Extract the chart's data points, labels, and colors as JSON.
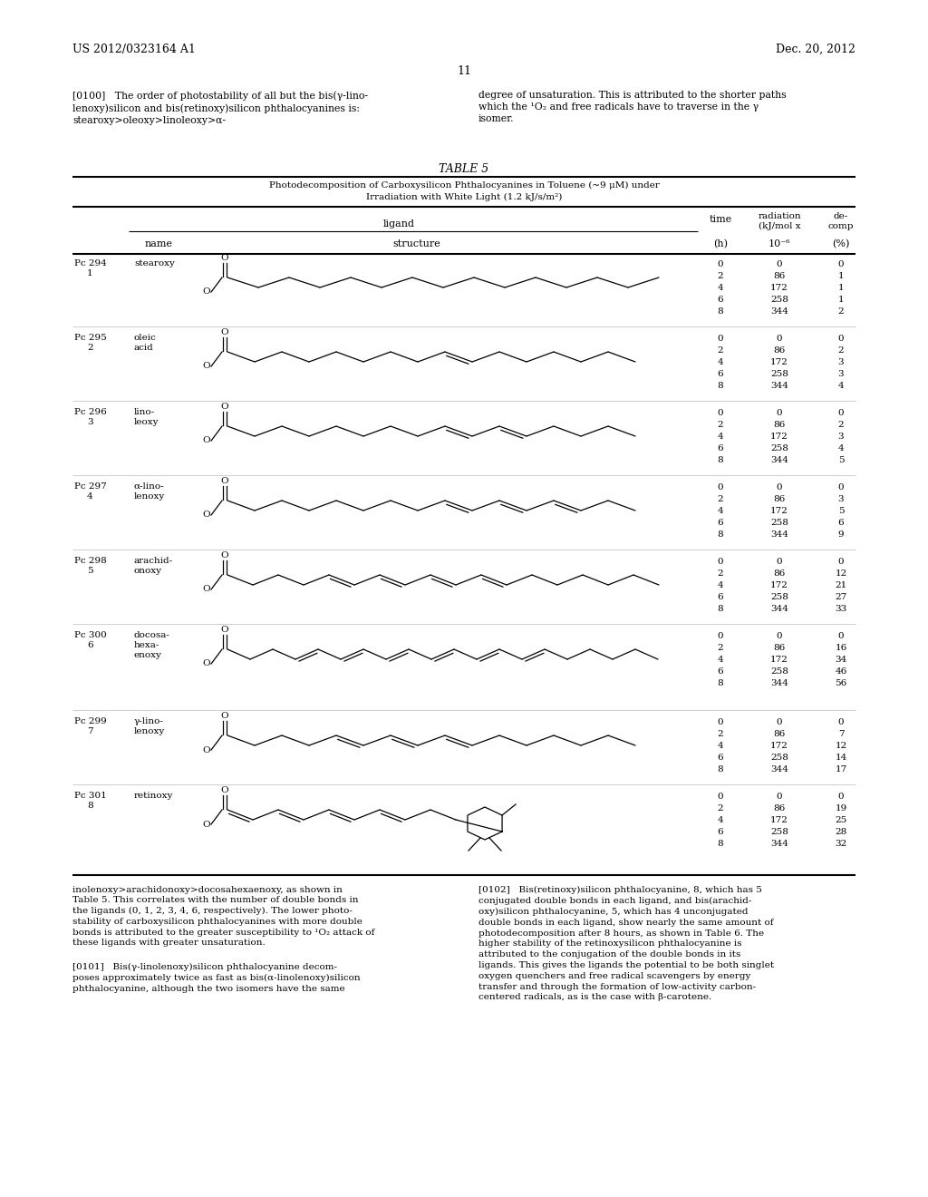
{
  "page_header_left": "US 2012/0323164 A1",
  "page_header_right": "Dec. 20, 2012",
  "page_number": "11",
  "para0100_left": "[0100]   The order of photostability of all but the bis(γ-lino-\nlenoxy)silicon and bis(retinoxy)silicon phthalocyanines is:\nstearoxy>oleoxy>linoleoxy>α-",
  "para0100_right": "degree of unsaturation. This is attributed to the shorter paths\nwhich the ¹O₂ and free radicals have to traverse in the γ\nisomer.",
  "table_title": "TABLE 5",
  "table_subtitle1": "Photodecomposition of Carboxysilicon Phthalocyanines in Toluene (~9 μM) under",
  "table_subtitle2": "Irradiation with White Light (1.2 kJ/s/m²)",
  "rows": [
    {
      "pc": "Pc 294",
      "num": "1",
      "name": "stearoxy",
      "struct_type": "stearoxy",
      "time": [
        "0",
        "2",
        "4",
        "6",
        "8"
      ],
      "radiation": [
        "0",
        "86",
        "172",
        "258",
        "344"
      ],
      "decomp": [
        "0",
        "1",
        "1",
        "1",
        "2"
      ]
    },
    {
      "pc": "Pc 295",
      "num": "2",
      "name": "oleic\nacid",
      "struct_type": "oleic",
      "time": [
        "0",
        "2",
        "4",
        "6",
        "8"
      ],
      "radiation": [
        "0",
        "86",
        "172",
        "258",
        "344"
      ],
      "decomp": [
        "0",
        "2",
        "3",
        "3",
        "4"
      ]
    },
    {
      "pc": "Pc 296",
      "num": "3",
      "name": "lino-\nleoxy",
      "struct_type": "linoleoxy",
      "time": [
        "0",
        "2",
        "4",
        "6",
        "8"
      ],
      "radiation": [
        "0",
        "86",
        "172",
        "258",
        "344"
      ],
      "decomp": [
        "0",
        "2",
        "3",
        "4",
        "5"
      ]
    },
    {
      "pc": "Pc 297",
      "num": "4",
      "name": "α-lino-\nlenoxy",
      "struct_type": "alpha_linolenoxy",
      "time": [
        "0",
        "2",
        "4",
        "6",
        "8"
      ],
      "radiation": [
        "0",
        "86",
        "172",
        "258",
        "344"
      ],
      "decomp": [
        "0",
        "3",
        "5",
        "6",
        "9"
      ]
    },
    {
      "pc": "Pc 298",
      "num": "5",
      "name": "arachid-\nonoxy",
      "struct_type": "arachidonoxy",
      "time": [
        "0",
        "2",
        "4",
        "6",
        "8"
      ],
      "radiation": [
        "0",
        "86",
        "172",
        "258",
        "344"
      ],
      "decomp": [
        "0",
        "12",
        "21",
        "27",
        "33"
      ]
    },
    {
      "pc": "Pc 300",
      "num": "6",
      "name": "docosa-\nhexa-\nenoxy",
      "struct_type": "docosahexaenoxy",
      "time": [
        "0",
        "2",
        "4",
        "6",
        "8"
      ],
      "radiation": [
        "0",
        "86",
        "172",
        "258",
        "344"
      ],
      "decomp": [
        "0",
        "16",
        "34",
        "46",
        "56"
      ]
    },
    {
      "pc": "Pc 299",
      "num": "7",
      "name": "γ-lino-\nlenoxy",
      "struct_type": "gamma_linolenoxy",
      "time": [
        "0",
        "2",
        "4",
        "6",
        "8"
      ],
      "radiation": [
        "0",
        "86",
        "172",
        "258",
        "344"
      ],
      "decomp": [
        "0",
        "7",
        "12",
        "14",
        "17"
      ]
    },
    {
      "pc": "Pc 301",
      "num": "8",
      "name": "retinoxy",
      "struct_type": "retinoxy",
      "time": [
        "0",
        "2",
        "4",
        "6",
        "8"
      ],
      "radiation": [
        "0",
        "86",
        "172",
        "258",
        "344"
      ],
      "decomp": [
        "0",
        "19",
        "25",
        "28",
        "32"
      ]
    }
  ],
  "para_bottom_left1": "inolenoxy>arachidonoxy>docosahexaenoxy, as shown in",
  "para_bottom_left2": "Table 5. This correlates with the number of double bonds in\nthe ligands (0, 1, 2, 3, 4, 6, respectively). The lower photo-\nstability of carboxysilicon phthalocyanines with more double\nbonds is attributed to the greater susceptibility to ¹O₂ attack of\nthese ligands with greater unsaturation.",
  "para_bottom_left3": "[0101]   Bis(γ-linolenoxy)silicon phthalocyanine decom-\nposes approximately twice as fast as bis(α-linolenoxy)silicon\nphthalocyanine, although the two isomers have the same",
  "para_bottom_right": "[0102]   Bis(retinoxy)silicon phthalocyanine, 8, which has 5\nconjugated double bonds in each ligand, and bis(arachid-\noxy)silicon phthalocyanine, 5, which has 4 unconjugated\ndouble bonds in each ligand, show nearly the same amount of\nphotodecomposition after 8 hours, as shown in Table 6. The\nhigher stability of the retinoxysilicon phthalocyanine is\nattributed to the conjugation of the double bonds in its\nligands. This gives the ligands the potential to be both singlet\noxygen quenchers and free radical scavengers by energy\ntransfer and through the formation of low-activity carbon-\ncentered radicals, as is the case with β-carotene."
}
